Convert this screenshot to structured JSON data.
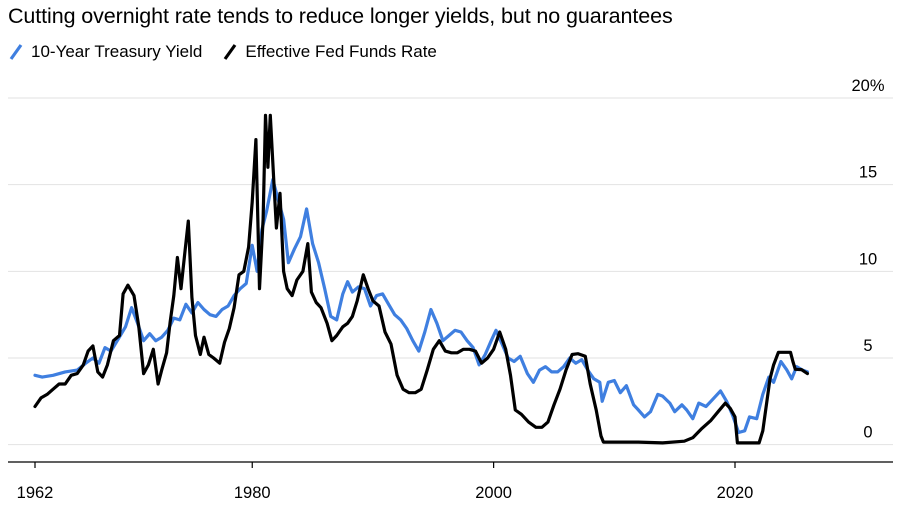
{
  "chart_data": {
    "type": "line",
    "title": "Cutting overnight rate tends to reduce longer yields, but no guarantees",
    "xlabel": "",
    "ylabel": "",
    "xlim": [
      1961.5,
      2030.5
    ],
    "ylim": [
      -1,
      20
    ],
    "x_ticks": [
      1962,
      1980,
      2000,
      2020
    ],
    "x_tick_labels": [
      "1962",
      "1980",
      "2000",
      "2020"
    ],
    "y_ticks": [
      0,
      5,
      10,
      15,
      20
    ],
    "y_tick_labels": [
      "0",
      "5",
      "10",
      "15",
      "20%"
    ],
    "grid": "horizontal",
    "legend_position": "top-left",
    "series": [
      {
        "name": "10-Year Treasury Yield",
        "color": "#3F7FE0",
        "points": [
          [
            1962,
            4.0
          ],
          [
            1962.6,
            3.9
          ],
          [
            1963.5,
            4.0
          ],
          [
            1964.5,
            4.2
          ],
          [
            1965.5,
            4.3
          ],
          [
            1966.2,
            4.7
          ],
          [
            1966.8,
            5.0
          ],
          [
            1967.3,
            4.7
          ],
          [
            1967.8,
            5.6
          ],
          [
            1968.3,
            5.4
          ],
          [
            1968.9,
            6.1
          ],
          [
            1969.5,
            6.8
          ],
          [
            1970.0,
            7.9
          ],
          [
            1970.5,
            7.0
          ],
          [
            1971.0,
            6.0
          ],
          [
            1971.5,
            6.4
          ],
          [
            1972.0,
            6.0
          ],
          [
            1972.5,
            6.2
          ],
          [
            1973.0,
            6.6
          ],
          [
            1973.5,
            7.3
          ],
          [
            1974.0,
            7.2
          ],
          [
            1974.5,
            8.1
          ],
          [
            1975.0,
            7.6
          ],
          [
            1975.5,
            8.2
          ],
          [
            1976.0,
            7.8
          ],
          [
            1976.5,
            7.5
          ],
          [
            1977.0,
            7.4
          ],
          [
            1977.5,
            7.8
          ],
          [
            1978.0,
            8.0
          ],
          [
            1978.5,
            8.6
          ],
          [
            1979.0,
            9.0
          ],
          [
            1979.5,
            9.3
          ],
          [
            1980.0,
            11.5
          ],
          [
            1980.4,
            10.0
          ],
          [
            1980.8,
            12.4
          ],
          [
            1981.2,
            13.5
          ],
          [
            1981.7,
            15.3
          ],
          [
            1982.2,
            14.0
          ],
          [
            1982.6,
            13.0
          ],
          [
            1983.0,
            10.5
          ],
          [
            1983.5,
            11.3
          ],
          [
            1984.0,
            12.0
          ],
          [
            1984.5,
            13.6
          ],
          [
            1985.0,
            11.6
          ],
          [
            1985.5,
            10.5
          ],
          [
            1986.0,
            9.0
          ],
          [
            1986.5,
            7.4
          ],
          [
            1987.0,
            7.2
          ],
          [
            1987.5,
            8.7
          ],
          [
            1987.9,
            9.4
          ],
          [
            1988.3,
            8.8
          ],
          [
            1988.8,
            9.1
          ],
          [
            1989.3,
            9.0
          ],
          [
            1989.8,
            8.0
          ],
          [
            1990.3,
            8.6
          ],
          [
            1990.8,
            8.7
          ],
          [
            1991.3,
            8.1
          ],
          [
            1991.8,
            7.5
          ],
          [
            1992.3,
            7.2
          ],
          [
            1992.8,
            6.7
          ],
          [
            1993.3,
            6.0
          ],
          [
            1993.8,
            5.4
          ],
          [
            1994.3,
            6.5
          ],
          [
            1994.8,
            7.8
          ],
          [
            1995.3,
            7.0
          ],
          [
            1995.8,
            6.0
          ],
          [
            1996.3,
            6.3
          ],
          [
            1996.8,
            6.6
          ],
          [
            1997.3,
            6.5
          ],
          [
            1997.8,
            6.0
          ],
          [
            1998.3,
            5.6
          ],
          [
            1998.8,
            4.6
          ],
          [
            1999.3,
            5.2
          ],
          [
            1999.8,
            6.0
          ],
          [
            2000.2,
            6.6
          ],
          [
            2000.7,
            5.8
          ],
          [
            2001.2,
            5.0
          ],
          [
            2001.7,
            4.8
          ],
          [
            2002.2,
            5.1
          ],
          [
            2002.8,
            4.1
          ],
          [
            2003.3,
            3.6
          ],
          [
            2003.8,
            4.3
          ],
          [
            2004.3,
            4.5
          ],
          [
            2004.8,
            4.2
          ],
          [
            2005.3,
            4.2
          ],
          [
            2005.8,
            4.5
          ],
          [
            2006.3,
            5.0
          ],
          [
            2006.8,
            4.7
          ],
          [
            2007.3,
            4.9
          ],
          [
            2007.8,
            4.3
          ],
          [
            2008.3,
            3.8
          ],
          [
            2008.8,
            3.6
          ],
          [
            2009.0,
            2.5
          ],
          [
            2009.5,
            3.6
          ],
          [
            2010.0,
            3.7
          ],
          [
            2010.5,
            3.0
          ],
          [
            2011.0,
            3.4
          ],
          [
            2011.6,
            2.3
          ],
          [
            2012.0,
            2.0
          ],
          [
            2012.5,
            1.6
          ],
          [
            2013.0,
            1.9
          ],
          [
            2013.6,
            2.9
          ],
          [
            2014.0,
            2.8
          ],
          [
            2014.6,
            2.4
          ],
          [
            2015.0,
            1.9
          ],
          [
            2015.6,
            2.3
          ],
          [
            2016.0,
            2.0
          ],
          [
            2016.5,
            1.5
          ],
          [
            2017.0,
            2.4
          ],
          [
            2017.6,
            2.2
          ],
          [
            2018.0,
            2.5
          ],
          [
            2018.8,
            3.1
          ],
          [
            2019.3,
            2.5
          ],
          [
            2019.8,
            1.7
          ],
          [
            2020.3,
            0.7
          ],
          [
            2020.8,
            0.8
          ],
          [
            2021.2,
            1.6
          ],
          [
            2021.8,
            1.5
          ],
          [
            2022.3,
            2.9
          ],
          [
            2022.8,
            3.9
          ],
          [
            2023.2,
            3.6
          ],
          [
            2023.8,
            4.8
          ],
          [
            2024.3,
            4.3
          ],
          [
            2024.7,
            3.8
          ],
          [
            2025.1,
            4.5
          ],
          [
            2025.6,
            4.3
          ],
          [
            2026.0,
            4.2
          ]
        ]
      },
      {
        "name": "Effective Fed Funds Rate",
        "color": "#000000",
        "points": [
          [
            1962,
            2.2
          ],
          [
            1962.5,
            2.7
          ],
          [
            1963.0,
            2.9
          ],
          [
            1963.5,
            3.2
          ],
          [
            1964.0,
            3.5
          ],
          [
            1964.5,
            3.5
          ],
          [
            1965.0,
            4.0
          ],
          [
            1965.5,
            4.1
          ],
          [
            1966.0,
            4.6
          ],
          [
            1966.4,
            5.4
          ],
          [
            1966.8,
            5.7
          ],
          [
            1967.2,
            4.2
          ],
          [
            1967.6,
            3.9
          ],
          [
            1968.0,
            4.6
          ],
          [
            1968.5,
            6.0
          ],
          [
            1969.0,
            6.3
          ],
          [
            1969.3,
            8.7
          ],
          [
            1969.7,
            9.2
          ],
          [
            1970.2,
            8.6
          ],
          [
            1970.6,
            6.8
          ],
          [
            1971.0,
            4.1
          ],
          [
            1971.4,
            4.6
          ],
          [
            1971.8,
            5.5
          ],
          [
            1972.2,
            3.5
          ],
          [
            1972.5,
            4.3
          ],
          [
            1972.9,
            5.3
          ],
          [
            1973.2,
            7.1
          ],
          [
            1973.5,
            8.6
          ],
          [
            1973.8,
            10.8
          ],
          [
            1974.1,
            9.0
          ],
          [
            1974.4,
            11.0
          ],
          [
            1974.7,
            12.9
          ],
          [
            1975.0,
            8.5
          ],
          [
            1975.3,
            6.3
          ],
          [
            1975.7,
            5.2
          ],
          [
            1976.0,
            6.2
          ],
          [
            1976.4,
            5.2
          ],
          [
            1976.8,
            5.0
          ],
          [
            1977.3,
            4.7
          ],
          [
            1977.7,
            5.9
          ],
          [
            1978.1,
            6.7
          ],
          [
            1978.5,
            7.9
          ],
          [
            1978.9,
            9.8
          ],
          [
            1979.3,
            10.0
          ],
          [
            1979.7,
            11.4
          ],
          [
            1980.0,
            14.0
          ],
          [
            1980.3,
            17.6
          ],
          [
            1980.6,
            9.0
          ],
          [
            1980.9,
            13.0
          ],
          [
            1981.1,
            19.0
          ],
          [
            1981.3,
            16.0
          ],
          [
            1981.5,
            19.0
          ],
          [
            1981.8,
            15.0
          ],
          [
            1982.0,
            12.5
          ],
          [
            1982.3,
            14.5
          ],
          [
            1982.6,
            10.0
          ],
          [
            1982.9,
            9.0
          ],
          [
            1983.3,
            8.6
          ],
          [
            1983.7,
            9.5
          ],
          [
            1984.2,
            10.0
          ],
          [
            1984.6,
            11.6
          ],
          [
            1984.9,
            8.8
          ],
          [
            1985.3,
            8.2
          ],
          [
            1985.7,
            7.9
          ],
          [
            1986.2,
            7.0
          ],
          [
            1986.6,
            6.0
          ],
          [
            1987.0,
            6.3
          ],
          [
            1987.5,
            6.8
          ],
          [
            1987.9,
            7.0
          ],
          [
            1988.3,
            7.4
          ],
          [
            1988.7,
            8.3
          ],
          [
            1989.2,
            9.8
          ],
          [
            1989.6,
            9.0
          ],
          [
            1990.0,
            8.3
          ],
          [
            1990.5,
            8.0
          ],
          [
            1991.0,
            6.5
          ],
          [
            1991.5,
            5.8
          ],
          [
            1992.0,
            4.0
          ],
          [
            1992.5,
            3.2
          ],
          [
            1993.0,
            3.0
          ],
          [
            1993.5,
            3.0
          ],
          [
            1994.0,
            3.2
          ],
          [
            1994.5,
            4.3
          ],
          [
            1995.0,
            5.5
          ],
          [
            1995.5,
            6.0
          ],
          [
            1996.0,
            5.4
          ],
          [
            1996.5,
            5.3
          ],
          [
            1997.0,
            5.3
          ],
          [
            1997.5,
            5.5
          ],
          [
            1998.0,
            5.5
          ],
          [
            1998.5,
            5.4
          ],
          [
            1999.0,
            4.7
          ],
          [
            1999.5,
            5.0
          ],
          [
            2000.0,
            5.5
          ],
          [
            2000.5,
            6.5
          ],
          [
            2001.0,
            5.5
          ],
          [
            2001.4,
            4.0
          ],
          [
            2001.8,
            2.0
          ],
          [
            2002.3,
            1.75
          ],
          [
            2002.9,
            1.3
          ],
          [
            2003.5,
            1.0
          ],
          [
            2004.0,
            1.0
          ],
          [
            2004.5,
            1.3
          ],
          [
            2005.0,
            2.3
          ],
          [
            2005.5,
            3.2
          ],
          [
            2006.0,
            4.3
          ],
          [
            2006.5,
            5.2
          ],
          [
            2007.0,
            5.25
          ],
          [
            2007.6,
            5.1
          ],
          [
            2008.0,
            3.5
          ],
          [
            2008.5,
            2.0
          ],
          [
            2008.9,
            0.5
          ],
          [
            2009.1,
            0.15
          ],
          [
            2010.0,
            0.15
          ],
          [
            2012.0,
            0.15
          ],
          [
            2014.0,
            0.1
          ],
          [
            2015.8,
            0.2
          ],
          [
            2016.5,
            0.4
          ],
          [
            2017.2,
            0.9
          ],
          [
            2018.0,
            1.4
          ],
          [
            2018.6,
            1.9
          ],
          [
            2019.2,
            2.4
          ],
          [
            2019.6,
            2.1
          ],
          [
            2020.0,
            1.6
          ],
          [
            2020.2,
            0.1
          ],
          [
            2021.0,
            0.1
          ],
          [
            2022.0,
            0.1
          ],
          [
            2022.3,
            0.8
          ],
          [
            2022.6,
            2.3
          ],
          [
            2022.9,
            3.8
          ],
          [
            2023.2,
            4.6
          ],
          [
            2023.6,
            5.33
          ],
          [
            2024.6,
            5.33
          ],
          [
            2024.8,
            4.8
          ],
          [
            2025.0,
            4.35
          ],
          [
            2025.5,
            4.33
          ],
          [
            2026.0,
            4.1
          ]
        ]
      }
    ]
  }
}
